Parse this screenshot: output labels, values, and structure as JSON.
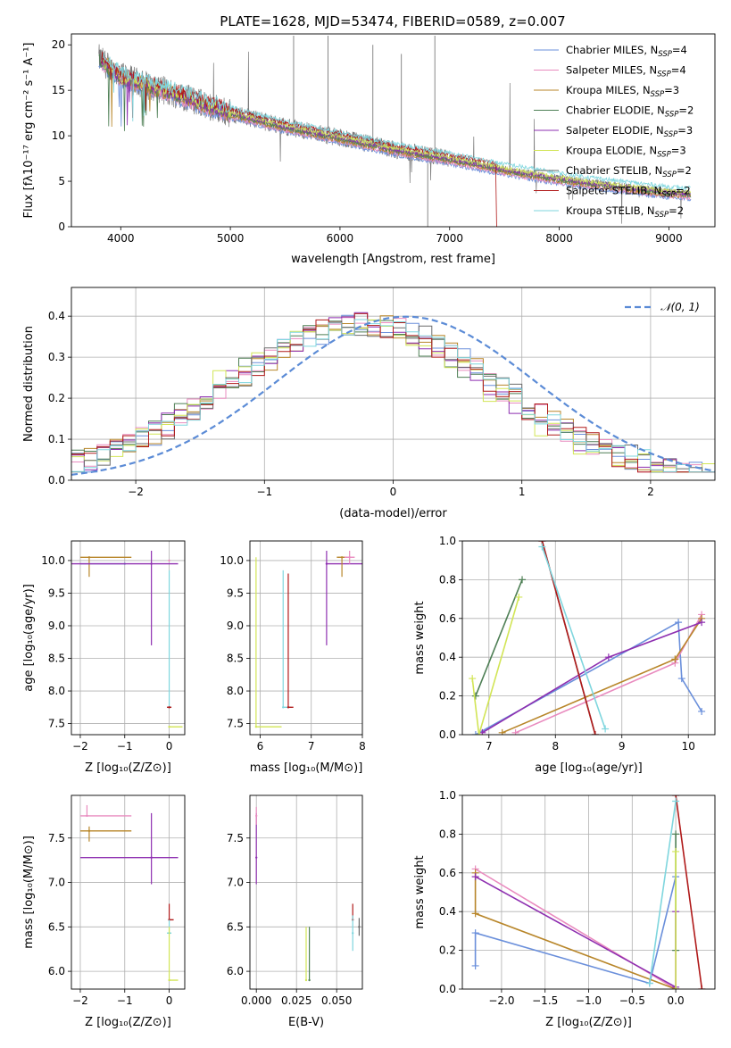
{
  "series_styles": [
    {
      "name": "Chabrier MILES",
      "sub": "SSP",
      "n": "4",
      "color": "#6a8fdb"
    },
    {
      "name": "Salpeter MILES",
      "sub": "SSP",
      "n": "4",
      "color": "#e98bbf"
    },
    {
      "name": "Kroupa MILES",
      "sub": "SSP",
      "n": "3",
      "color": "#b8862a"
    },
    {
      "name": "Chabrier ELODIE",
      "sub": "SSP",
      "n": "2",
      "color": "#4e7f55"
    },
    {
      "name": "Salpeter ELODIE",
      "sub": "SSP",
      "n": "3",
      "color": "#8e2fb0"
    },
    {
      "name": "Kroupa ELODIE",
      "sub": "SSP",
      "n": "3",
      "color": "#d2e556"
    },
    {
      "name": "Chabrier STELIB",
      "sub": "SSP",
      "n": "2",
      "color": "#6b6b6b"
    },
    {
      "name": "Salpeter STELIB",
      "sub": "SSP",
      "n": "2",
      "color": "#b01a1a"
    },
    {
      "name": "Kroupa STELIB",
      "sub": "SSP",
      "n": "2",
      "color": "#7fd6de"
    }
  ],
  "chart_data": [
    {
      "id": "spectrum",
      "type": "line",
      "title": "PLATE=1628, MJD=53474, FIBERID=0589, z=0.007",
      "xlabel": "wavelength [Angstrom, rest frame]",
      "ylabel": "Flux [fλ10⁻¹⁷ erg cm⁻² s⁻¹ A⁻¹]",
      "xlim": [
        3550,
        9420
      ],
      "ylim": [
        0,
        21.2
      ],
      "xticks": [
        4000,
        5000,
        6000,
        7000,
        8000,
        9000
      ],
      "yticks": [
        0,
        5,
        10,
        15,
        20
      ],
      "legend": "top-right",
      "continuum": {
        "x": [
          3800,
          4000,
          4500,
          5000,
          5500,
          6000,
          6500,
          7000,
          7500,
          8000,
          8500,
          9000,
          9200
        ],
        "y": [
          18.5,
          16.5,
          14.6,
          12.5,
          11.0,
          9.8,
          8.5,
          7.5,
          6.3,
          5.3,
          4.5,
          3.8,
          3.6
        ]
      }
    },
    {
      "id": "residuals",
      "type": "line",
      "xlabel": "(data-model)/error",
      "ylabel": "Normed distribution",
      "xlim": [
        -2.5,
        2.5
      ],
      "ylim": [
        0,
        0.47
      ],
      "xticks": [
        -2,
        -1,
        0,
        1,
        2
      ],
      "yticks": [
        0.0,
        0.1,
        0.2,
        0.3,
        0.4
      ],
      "legend_label": "𝒩(0, 1)",
      "legend": "top-right",
      "grid": true
    },
    {
      "id": "age_vs_Z",
      "type": "scatter",
      "xlabel": "Z [log₁₀(Z/Z⊙)]",
      "ylabel": "age  [log₁₀(age/yr)]",
      "xlim": [
        -2.2,
        0.35
      ],
      "ylim": [
        7.33,
        10.3
      ],
      "xticks": [
        -2,
        -1,
        0
      ],
      "yticks": [
        7.5,
        8.0,
        8.5,
        9.0,
        9.5,
        10.0
      ],
      "grid": true,
      "points": [
        {
          "s": 0,
          "x": -1.0,
          "y": 9.95,
          "xerr": [
            1.0,
            0.0
          ],
          "yerr": [
            0,
            0
          ]
        },
        {
          "s": 1,
          "x": 0.0,
          "y": 10.0,
          "xerr": [
            0.0,
            0.0
          ],
          "yerr": [
            0,
            0
          ]
        },
        {
          "s": 2,
          "x": -1.8,
          "y": 10.05,
          "xerr": [
            0.2,
            0.95
          ],
          "yerr": [
            0.3,
            0
          ]
        },
        {
          "s": 4,
          "x": -0.4,
          "y": 9.95,
          "xerr": [
            1.8,
            0.6
          ],
          "yerr": [
            1.25,
            0.2
          ]
        },
        {
          "s": 5,
          "x": 0.0,
          "y": 7.45,
          "xerr": [
            0.0,
            0.3
          ],
          "yerr": [
            0,
            0
          ]
        },
        {
          "s": 8,
          "x": 0.0,
          "y": 7.75,
          "xerr": [
            0.05,
            0.05
          ],
          "yerr": [
            0,
            2.1
          ]
        },
        {
          "s": 7,
          "x": 0.0,
          "y": 7.75,
          "xerr": [
            0.05,
            0.05
          ],
          "yerr": [
            0,
            0
          ]
        }
      ]
    },
    {
      "id": "age_vs_mass",
      "type": "scatter",
      "xlabel": "mass [log₁₀(M/M⊙)]",
      "ylabel": "",
      "xlim": [
        5.8,
        8.0
      ],
      "ylim": [
        7.33,
        10.3
      ],
      "xticks": [
        6,
        7,
        8
      ],
      "yticks": [
        7.5,
        8.0,
        8.5,
        9.0,
        9.5,
        10.0
      ],
      "grid": true,
      "points": [
        {
          "s": 5,
          "x": 5.92,
          "y": 7.45,
          "xerr": [
            0,
            0.5
          ],
          "yerr": [
            0,
            2.6
          ]
        },
        {
          "s": 8,
          "x": 6.45,
          "y": 7.75,
          "xerr": [
            0,
            0.15
          ],
          "yerr": [
            0,
            2.1
          ]
        },
        {
          "s": 7,
          "x": 6.55,
          "y": 7.75,
          "xerr": [
            0,
            0.1
          ],
          "yerr": [
            0,
            2.05
          ]
        },
        {
          "s": 4,
          "x": 7.3,
          "y": 9.95,
          "xerr": [
            0,
            0.8
          ],
          "yerr": [
            1.25,
            0.2
          ]
        },
        {
          "s": 2,
          "x": 7.6,
          "y": 10.05,
          "xerr": [
            0.1,
            0.1
          ],
          "yerr": [
            0.3,
            0
          ]
        },
        {
          "s": 1,
          "x": 7.75,
          "y": 10.05,
          "xerr": [
            0.1,
            0.1
          ],
          "yerr": [
            0.1,
            0.1
          ]
        }
      ]
    },
    {
      "id": "weight_vs_age",
      "type": "line",
      "xlabel": "age  [log₁₀(age/yr)]",
      "ylabel": "mass weight",
      "xlim": [
        6.6,
        10.4
      ],
      "ylim": [
        0,
        1
      ],
      "xticks": [
        7,
        8,
        9,
        10
      ],
      "yticks": [
        0.0,
        0.2,
        0.4,
        0.6,
        0.8,
        1.0
      ],
      "grid": true,
      "lines": [
        {
          "s": 0,
          "x": [
            6.8,
            9.85,
            9.9,
            10.2
          ],
          "y": [
            0.0,
            0.58,
            0.29,
            0.12
          ]
        },
        {
          "s": 1,
          "x": 7.4,
          "x_": 0,
          "xs": [
            7.4,
            9.8,
            10.2
          ],
          "ys": [
            0.01,
            0.37,
            0.62
          ]
        },
        {
          "s": 2,
          "xs": [
            7.2,
            9.8,
            10.2
          ],
          "ys": [
            0.01,
            0.39,
            0.6
          ]
        },
        {
          "s": 3,
          "xs": [
            6.8,
            7.5
          ],
          "ys": [
            0.2,
            0.8
          ]
        },
        {
          "s": 4,
          "xs": [
            6.9,
            8.8,
            10.2
          ],
          "ys": [
            0.01,
            0.4,
            0.58
          ]
        },
        {
          "s": 5,
          "xs": [
            6.75,
            6.85,
            7.45
          ],
          "ys": [
            0.29,
            0.0,
            0.71
          ]
        },
        {
          "s": 6,
          "xs": [
            7.8,
            8.6
          ],
          "ys": [
            1.0,
            0.0
          ]
        },
        {
          "s": 7,
          "xs": [
            7.8,
            8.6
          ],
          "ys": [
            1.0,
            0.0
          ]
        },
        {
          "s": 8,
          "xs": [
            7.8,
            8.75
          ],
          "ys": [
            0.97,
            0.03
          ]
        }
      ]
    },
    {
      "id": "mass_vs_Z",
      "type": "scatter",
      "xlabel": "Z [log₁₀(Z/Z⊙)]",
      "ylabel": "mass [log₁₀(M/M⊙)]",
      "xlim": [
        -2.2,
        0.35
      ],
      "ylim": [
        5.8,
        7.98
      ],
      "xticks": [
        -2,
        -1,
        0
      ],
      "yticks": [
        6.0,
        6.5,
        7.0,
        7.5
      ],
      "grid": true,
      "points": [
        {
          "s": 1,
          "x": -1.85,
          "y": 7.75,
          "xerr": [
            0.15,
            1.0
          ],
          "yerr": [
            0,
            0.12
          ]
        },
        {
          "s": 2,
          "x": -1.8,
          "y": 7.58,
          "xerr": [
            0.2,
            0.95
          ],
          "yerr": [
            0.12,
            0.05
          ]
        },
        {
          "s": 4,
          "x": -0.4,
          "y": 7.28,
          "xerr": [
            1.6,
            0.6
          ],
          "yerr": [
            0.3,
            0.5
          ]
        },
        {
          "s": 7,
          "x": 0.0,
          "y": 6.58,
          "xerr": [
            0,
            0.1
          ],
          "yerr": [
            0,
            0.18
          ]
        },
        {
          "s": 8,
          "x": 0.0,
          "y": 6.43,
          "xerr": [
            0.05,
            0.05
          ],
          "yerr": [
            0,
            0.15
          ]
        },
        {
          "s": 5,
          "x": 0.0,
          "y": 5.9,
          "xerr": [
            0,
            0.2
          ],
          "yerr": [
            0,
            0.6
          ]
        }
      ]
    },
    {
      "id": "mass_vs_EBV",
      "type": "scatter",
      "xlabel": "E(B-V)",
      "ylabel": "",
      "xlim": [
        -0.004,
        0.066
      ],
      "ylim": [
        5.8,
        7.98
      ],
      "xticks": [
        0.0,
        0.025,
        0.05
      ],
      "yticklabels_visible": true,
      "yticks": [
        6.0,
        6.5,
        7.0,
        7.5
      ],
      "grid": true,
      "points": [
        {
          "s": 4,
          "x": 0.0,
          "y": 7.28,
          "xerr": [
            0,
            0
          ],
          "yerr": [
            0.3,
            0.5
          ]
        },
        {
          "s": 1,
          "x": 0.0,
          "y": 7.75,
          "xerr": [
            0,
            0
          ],
          "yerr": [
            0.1,
            0.1
          ]
        },
        {
          "s": 5,
          "x": 0.031,
          "y": 5.9,
          "xerr": [
            0,
            0
          ],
          "yerr": [
            0,
            0.6
          ]
        },
        {
          "s": 3,
          "x": 0.033,
          "y": 5.9,
          "xerr": [
            0,
            0
          ],
          "yerr": [
            0,
            0.6
          ]
        },
        {
          "s": 7,
          "x": 0.06,
          "y": 6.58,
          "xerr": [
            0,
            0
          ],
          "yerr": [
            0,
            0.18
          ]
        },
        {
          "s": 8,
          "x": 0.06,
          "y": 6.43,
          "xerr": [
            0,
            0
          ],
          "yerr": [
            0.2,
            0.2
          ]
        },
        {
          "s": 6,
          "x": 0.064,
          "y": 6.5,
          "xerr": [
            0,
            0
          ],
          "yerr": [
            0.1,
            0.1
          ]
        }
      ]
    },
    {
      "id": "weight_vs_Z",
      "type": "line",
      "xlabel": "Z [log₁₀(Z/Z⊙)]",
      "ylabel": "mass weight",
      "xlim": [
        -2.45,
        0.45
      ],
      "ylim": [
        0,
        1
      ],
      "xticks": [
        -2.0,
        -1.5,
        -1.0,
        -0.5,
        0.0
      ],
      "yticks": [
        0.0,
        0.2,
        0.4,
        0.6,
        0.8,
        1.0
      ],
      "grid": true,
      "lines": [
        {
          "s": 0,
          "xs": [
            -2.3,
            -2.3,
            -0.3,
            0.0
          ],
          "ys": [
            0.12,
            0.29,
            0.03,
            0.58
          ]
        },
        {
          "s": 1,
          "xs": [
            -2.3,
            0.0
          ],
          "ys": [
            0.62,
            0.0
          ]
        },
        {
          "s": 2,
          "xs": [
            -2.3,
            -2.3,
            0.0
          ],
          "ys": [
            0.6,
            0.39,
            0.0
          ]
        },
        {
          "s": 3,
          "xs": [
            0.0,
            0.0
          ],
          "ys": [
            0.2,
            0.8
          ]
        },
        {
          "s": 4,
          "xs": [
            -2.3,
            0.0,
            0.0
          ],
          "ys": [
            0.58,
            0.01,
            0.4
          ]
        },
        {
          "s": 5,
          "xs": [
            0.0,
            0.0
          ],
          "ys": [
            0.0,
            0.71
          ]
        },
        {
          "s": 7,
          "xs": [
            0.0,
            0.3
          ],
          "ys": [
            1.0,
            0.0
          ]
        },
        {
          "s": 8,
          "xs": [
            -0.3,
            0.0
          ],
          "ys": [
            0.03,
            0.97
          ]
        }
      ]
    }
  ]
}
